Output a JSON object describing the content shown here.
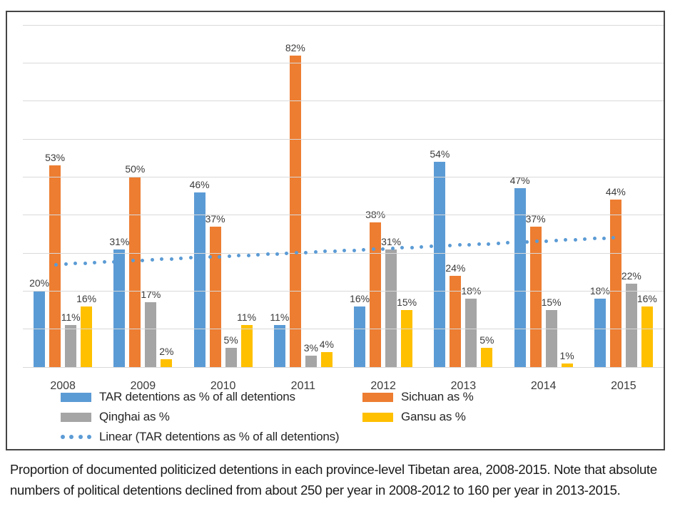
{
  "chart_data": {
    "type": "bar",
    "title": "",
    "categories": [
      "2008",
      "2009",
      "2010",
      "2011",
      "2012",
      "2013",
      "2014",
      "2015"
    ],
    "series": [
      {
        "name": "TAR detentions as % of all detentions",
        "color": "#5B9BD5",
        "values": [
          20,
          31,
          46,
          11,
          16,
          54,
          47,
          18
        ]
      },
      {
        "name": "Sichuan as %",
        "color": "#ED7D31",
        "values": [
          53,
          50,
          37,
          82,
          38,
          24,
          37,
          44
        ]
      },
      {
        "name": "Qinghai as %",
        "color": "#A5A5A5",
        "values": [
          11,
          17,
          5,
          3,
          31,
          18,
          15,
          22
        ]
      },
      {
        "name": "Gansu as %",
        "color": "#FFC000",
        "values": [
          16,
          2,
          11,
          4,
          15,
          5,
          1,
          16
        ]
      }
    ],
    "trendline": {
      "name": "Linear (TAR detentions as % of all detentions)",
      "color": "#5B9BD5",
      "style": "dotted",
      "start_pct": 27,
      "end_pct": 34,
      "x1_frac": 0.052,
      "x2_frac": 0.922
    },
    "data_labels": "percent",
    "ylim": [
      0,
      90
    ],
    "gridline_step": 10,
    "grid": true,
    "legend_position": "bottom",
    "xlabel": "",
    "ylabel": ""
  },
  "legend": {
    "items": [
      {
        "label": "TAR detentions as % of all detentions",
        "color": "#5B9BD5",
        "marker": "bar"
      },
      {
        "label": "Sichuan as %",
        "color": "#ED7D31",
        "marker": "bar"
      },
      {
        "label": "Qinghai as %",
        "color": "#A5A5A5",
        "marker": "bar"
      },
      {
        "label": "Gansu as %",
        "color": "#FFC000",
        "marker": "bar"
      },
      {
        "label": "Linear (TAR detentions as % of all detentions)",
        "color": "#5B9BD5",
        "marker": "dots"
      }
    ]
  },
  "caption": "Proportion of documented politicized detentions in each province-level Tibetan area, 2008-2015. Note that absolute numbers of political detentions declined from about 250 per year in 2008-2012 to 160 per year in 2013-2015."
}
